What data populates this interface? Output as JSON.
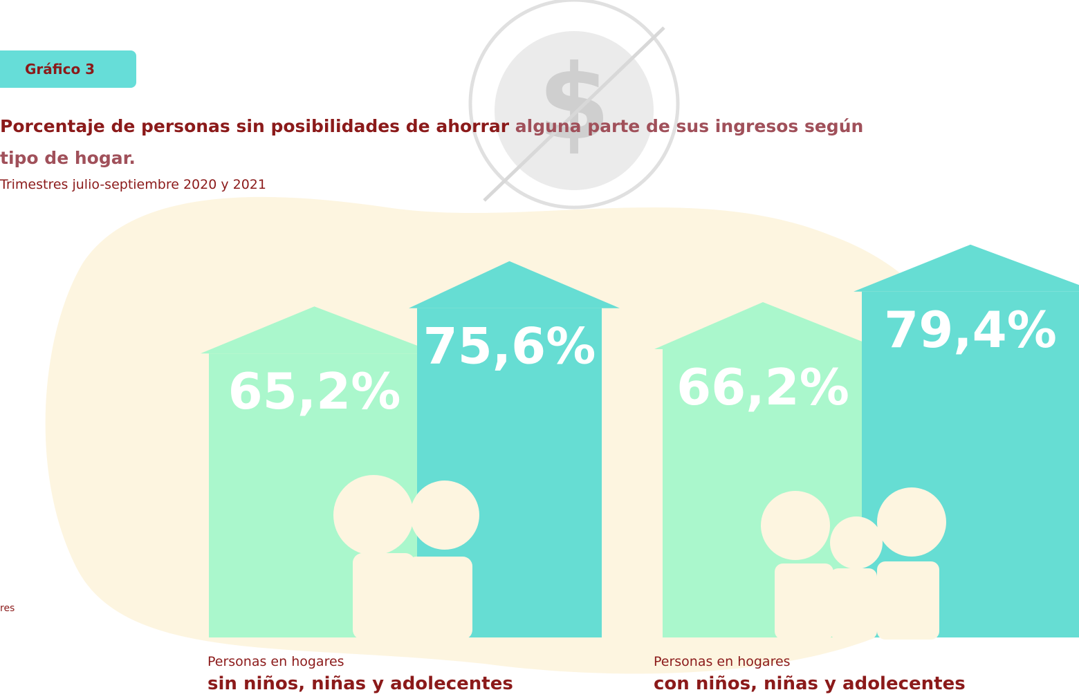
{
  "badge": "Gráfico 3",
  "chart_data": {
    "type": "bar",
    "title_bold": "Porcentaje de personas sin posibilidades de ahorrar",
    "title_rest": "alguna parte de sus ingresos según tipo de hogar.",
    "subtitle": "Trimestres julio-septiembre 2020 y 2021",
    "legend_fragment": "res",
    "category_prefix": [
      "Personas en hogares",
      "Personas en hogares"
    ],
    "categories": [
      "sin niños, niñas y adolecentes",
      "con niños, niñas y adolecentes"
    ],
    "series": [
      {
        "color": "#aaf7cc",
        "values": [
          65.2,
          66.2
        ],
        "value_labels": [
          "65,2%",
          "66,2%"
        ]
      },
      {
        "color": "#66ddd3",
        "values": [
          75.6,
          79.4
        ],
        "value_labels": [
          "75,6%",
          "79,4%"
        ]
      }
    ]
  }
}
